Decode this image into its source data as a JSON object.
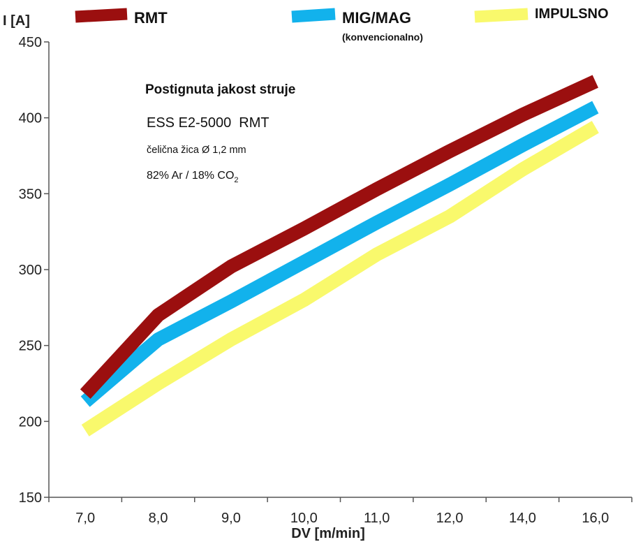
{
  "chart_data": {
    "type": "line",
    "title": "Postignuta jakost struje",
    "annotations": {
      "machine": "ESS E2-5000  RMT",
      "wire": "čelična žica Ø 1,2 mm",
      "gas_prefix": "82% Ar / 18% CO",
      "gas_subscript": "2"
    },
    "xlabel": "DV [m/min]",
    "ylabel": "I [A]",
    "categories": [
      "7,0",
      "8,0",
      "9,0",
      "10,0",
      "11,0",
      "12,0",
      "14,0",
      "16,0"
    ],
    "yticks": [
      "450",
      "400",
      "350",
      "300",
      "250",
      "200",
      "150"
    ],
    "ytick_values": [
      450,
      400,
      350,
      300,
      250,
      200,
      150
    ],
    "ylim": [
      150,
      450
    ],
    "grid": false,
    "legend_position": "top",
    "series": [
      {
        "name": "RMT",
        "sub": "",
        "color": "#9b0f0f",
        "values": [
          218,
          270,
          302,
          327,
          353,
          378,
          402,
          424
        ]
      },
      {
        "name": "MIG/MAG",
        "sub": "(konvencionalno)",
        "color": "#12b2ec",
        "values": [
          213,
          254,
          279,
          305,
          331,
          356,
          382,
          407
        ]
      },
      {
        "name": "IMPULSNO",
        "sub": "",
        "color": "#f9f96c",
        "values": [
          194,
          225,
          254,
          280,
          310,
          335,
          366,
          394
        ]
      }
    ]
  }
}
